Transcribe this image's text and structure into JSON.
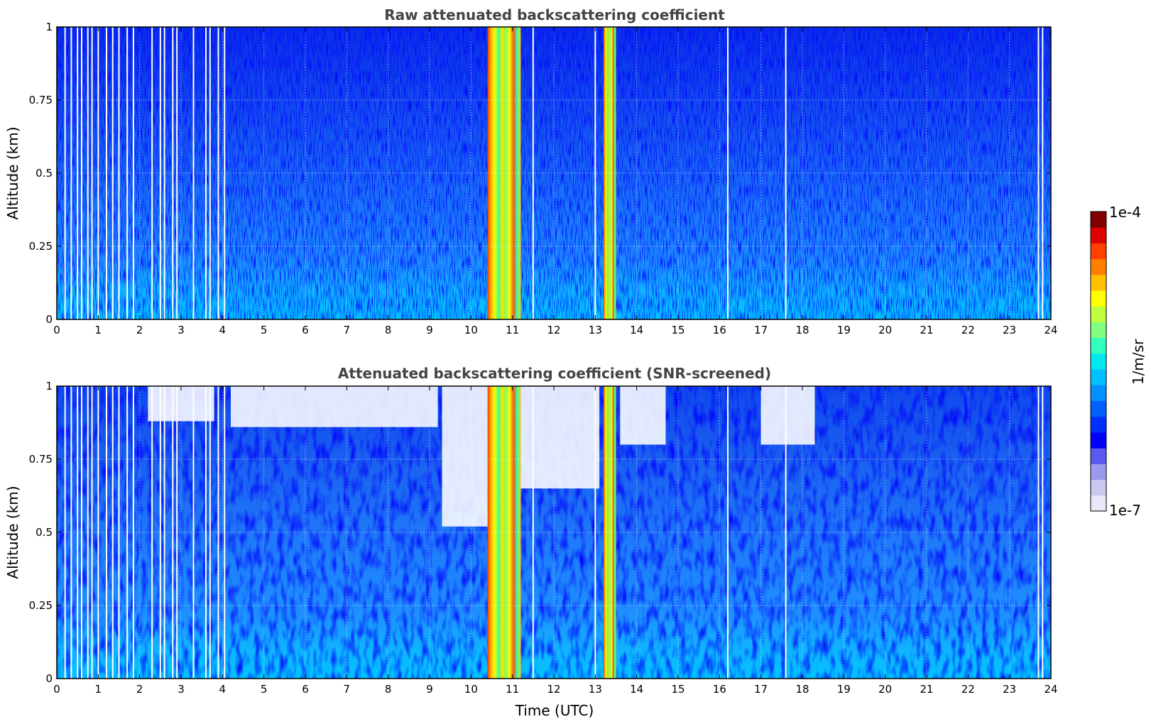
{
  "chart_data": [
    {
      "type": "heatmap",
      "title": "Raw attenuated backscattering coefficient",
      "xlabel": "",
      "ylabel": "Altitude (km)",
      "xlim": [
        0,
        24
      ],
      "ylim": [
        0,
        1
      ],
      "xticks": [
        "0",
        "1",
        "2",
        "3",
        "4",
        "5",
        "6",
        "7",
        "8",
        "9",
        "10",
        "11",
        "12",
        "13",
        "14",
        "15",
        "16",
        "17",
        "18",
        "19",
        "20",
        "21",
        "22",
        "23",
        "24"
      ],
      "yticks": [
        "0",
        "0.25",
        "0.5",
        "0.75",
        "1"
      ],
      "grid": true,
      "snr_screened": false,
      "high_backscatter_bands_utc": [
        [
          10.4,
          11.2
        ],
        [
          13.2,
          13.5
        ]
      ],
      "data_gap_times_utc": [
        0.2,
        0.35,
        0.5,
        0.6,
        0.75,
        0.85,
        1.0,
        1.2,
        1.35,
        1.5,
        1.7,
        1.85,
        2.3,
        2.5,
        2.6,
        2.8,
        2.9,
        3.3,
        3.6,
        3.7,
        3.9,
        4.05,
        11.5,
        13.0,
        16.2,
        17.6,
        23.7,
        23.8
      ]
    },
    {
      "type": "heatmap",
      "title": "Attenuated backscattering coefficient (SNR-screened)",
      "xlabel": "Time (UTC)",
      "ylabel": "Altitude (km)",
      "xlim": [
        0,
        24
      ],
      "ylim": [
        0,
        1
      ],
      "xticks": [
        "0",
        "1",
        "2",
        "3",
        "4",
        "5",
        "6",
        "7",
        "8",
        "9",
        "10",
        "11",
        "12",
        "13",
        "14",
        "15",
        "16",
        "17",
        "18",
        "19",
        "20",
        "21",
        "22",
        "23",
        "24"
      ],
      "yticks": [
        "0",
        "0.25",
        "0.5",
        "0.75",
        "1"
      ],
      "grid": true,
      "snr_screened": true,
      "high_backscatter_bands_utc": [
        [
          10.4,
          11.2
        ],
        [
          13.2,
          13.5
        ]
      ],
      "data_gap_times_utc": [
        0.2,
        0.35,
        0.5,
        0.6,
        0.75,
        0.85,
        1.0,
        1.2,
        1.35,
        1.5,
        1.7,
        1.85,
        2.3,
        2.5,
        2.6,
        2.8,
        2.9,
        3.3,
        3.6,
        3.7,
        3.9,
        4.05,
        11.5,
        13.0,
        16.2,
        17.6,
        23.7,
        23.8
      ],
      "screened_out_regions": [
        {
          "t": [
            2.2,
            3.8
          ],
          "alt": [
            0.88,
            1.0
          ]
        },
        {
          "t": [
            4.2,
            9.2
          ],
          "alt": [
            0.86,
            1.0
          ]
        },
        {
          "t": [
            9.3,
            10.4
          ],
          "alt": [
            0.52,
            1.0
          ]
        },
        {
          "t": [
            11.2,
            13.1
          ],
          "alt": [
            0.65,
            1.0
          ]
        },
        {
          "t": [
            13.6,
            14.7
          ],
          "alt": [
            0.8,
            1.0
          ]
        },
        {
          "t": [
            17.0,
            18.3
          ],
          "alt": [
            0.8,
            1.0
          ]
        }
      ]
    }
  ],
  "colorbar": {
    "label": "1/m/sr",
    "max_label": "1e-4",
    "min_label": "1e-7",
    "colormap": "jet",
    "colors": [
      "#e8e8f8",
      "#c8c8f0",
      "#9a9aee",
      "#5a5af0",
      "#0000ff",
      "#0030ff",
      "#0060ff",
      "#0090ff",
      "#00bfff",
      "#00e8f0",
      "#30ffc0",
      "#80ff80",
      "#c0ff40",
      "#ffff00",
      "#ffc000",
      "#ff8000",
      "#ff4000",
      "#e00000",
      "#800000"
    ]
  }
}
